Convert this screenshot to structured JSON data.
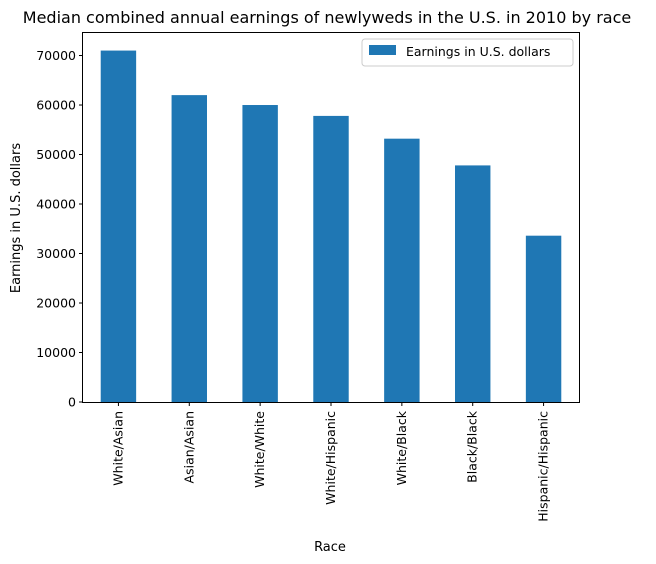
{
  "chart_data": {
    "type": "bar",
    "title": "Median combined annual earnings of newlyweds in the U.S. in 2010 by race",
    "xlabel": "Race",
    "ylabel": "Earnings in U.S. dollars",
    "categories": [
      "White/Asian",
      "Asian/Asian",
      "White/White",
      "White/Hispanic",
      "White/Black",
      "Black/Black",
      "Hispanic/Hispanic"
    ],
    "series": [
      {
        "name": "Earnings in U.S. dollars",
        "color": "#1f77b4",
        "values": [
          71000,
          62000,
          60000,
          57800,
          53200,
          47800,
          33600
        ]
      }
    ],
    "ylim": [
      0,
      74550
    ],
    "yticks": [
      0,
      10000,
      20000,
      30000,
      40000,
      50000,
      60000,
      70000
    ],
    "legend_position": "top-right",
    "grid": false
  }
}
